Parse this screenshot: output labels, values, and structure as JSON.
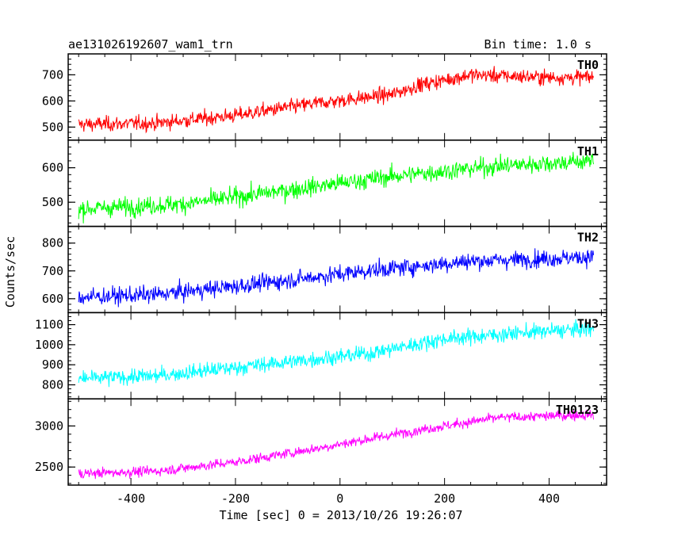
{
  "header": {
    "title": "ae131026192607_wam1_trn",
    "bin_time": "Bin time: 1.0 s"
  },
  "xlabel": "Time [sec] 0 = 2013/10/26 19:26:07",
  "ylabel": "Counts/sec",
  "chart_data": {
    "type": "line",
    "title": "ae131026192607_wam1_trn",
    "xlabel": "Time [sec] 0 = 2013/10/26 19:26:07",
    "ylabel": "Counts/sec",
    "xlim": [
      -520,
      510
    ],
    "x_ticks": [
      -400,
      -200,
      0,
      200,
      400
    ],
    "x_step": 1.0,
    "x_range": [
      -500,
      485
    ],
    "grid": false,
    "panels": [
      {
        "name": "TH0",
        "color": "#ff0000",
        "ylim": [
          450,
          780
        ],
        "y_ticks": [
          500,
          600,
          700
        ],
        "trend": [
          [
            -500,
            510
          ],
          [
            -350,
            515
          ],
          [
            -200,
            545
          ],
          [
            -50,
            590
          ],
          [
            100,
            625
          ],
          [
            150,
            660
          ],
          [
            250,
            700
          ],
          [
            400,
            690
          ],
          [
            485,
            690
          ]
        ],
        "noise": 28
      },
      {
        "name": "TH1",
        "color": "#00ff00",
        "ylim": [
          430,
          680
        ],
        "y_ticks": [
          500,
          600
        ],
        "trend": [
          [
            -500,
            480
          ],
          [
            -300,
            495
          ],
          [
            -100,
            535
          ],
          [
            100,
            575
          ],
          [
            300,
            605
          ],
          [
            485,
            620
          ]
        ],
        "noise": 26
      },
      {
        "name": "TH2",
        "color": "#0000ff",
        "ylim": [
          550,
          860
        ],
        "y_ticks": [
          600,
          700,
          800
        ],
        "trend": [
          [
            -500,
            605
          ],
          [
            -350,
            615
          ],
          [
            -150,
            655
          ],
          [
            50,
            700
          ],
          [
            250,
            735
          ],
          [
            485,
            750
          ]
        ],
        "noise": 30
      },
      {
        "name": "TH3",
        "color": "#00ffff",
        "ylim": [
          730,
          1160
        ],
        "y_ticks": [
          800,
          900,
          1000,
          1100
        ],
        "trend": [
          [
            -500,
            830
          ],
          [
            -350,
            845
          ],
          [
            -150,
            900
          ],
          [
            50,
            955
          ],
          [
            200,
            1030
          ],
          [
            350,
            1060
          ],
          [
            485,
            1080
          ]
        ],
        "noise": 38
      },
      {
        "name": "TH0123",
        "color": "#ff00ff",
        "ylim": [
          2280,
          3330
        ],
        "y_ticks": [
          2500,
          3000
        ],
        "trend": [
          [
            -500,
            2420
          ],
          [
            -350,
            2450
          ],
          [
            -200,
            2560
          ],
          [
            -50,
            2720
          ],
          [
            150,
            2950
          ],
          [
            300,
            3100
          ],
          [
            485,
            3140
          ]
        ],
        "noise": 60
      }
    ]
  }
}
